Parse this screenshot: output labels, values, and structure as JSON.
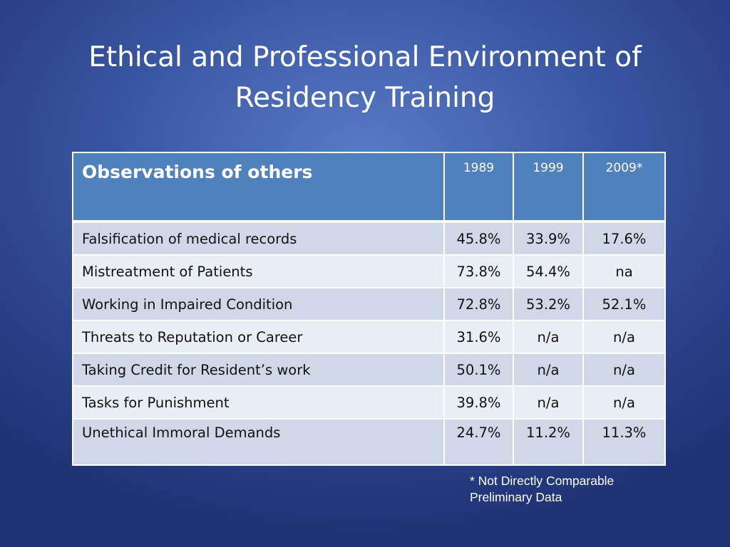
{
  "slide": {
    "title_line1": "Ethical and Professional Environment of",
    "title_line2": "Residency Training"
  },
  "table": {
    "header_label": "Observations of others",
    "years": [
      "1989",
      "1999",
      "2009*"
    ],
    "rows": [
      {
        "label": "Falsification of medical records",
        "values": [
          "45.8%",
          "33.9%",
          "17.6%"
        ]
      },
      {
        "label": "Mistreatment of Patients",
        "values": [
          "73.8%",
          "54.4%",
          "na"
        ]
      },
      {
        "label": "Working in Impaired Condition",
        "values": [
          "72.8%",
          "53.2%",
          "52.1%"
        ]
      },
      {
        "label": "Threats to Reputation or Career",
        "values": [
          "31.6%",
          "n/a",
          "n/a"
        ]
      },
      {
        "label": "Taking Credit for Resident’s work",
        "values": [
          "50.1%",
          "n/a",
          "n/a"
        ]
      },
      {
        "label": "Tasks for Punishment",
        "values": [
          "39.8%",
          "n/a",
          "n/a"
        ]
      },
      {
        "label": "Unethical Immoral Demands",
        "values": [
          "24.7%",
          "11.2%",
          "11.3%"
        ]
      }
    ]
  },
  "footnote": {
    "line1": "* Not Directly Comparable",
    "line2": "Preliminary Data"
  },
  "colors": {
    "background": "#3d5aa6",
    "header_fill": "#4f81bd",
    "row_band_dark": "#d0d8e8",
    "row_band_light": "#e9edf4"
  }
}
